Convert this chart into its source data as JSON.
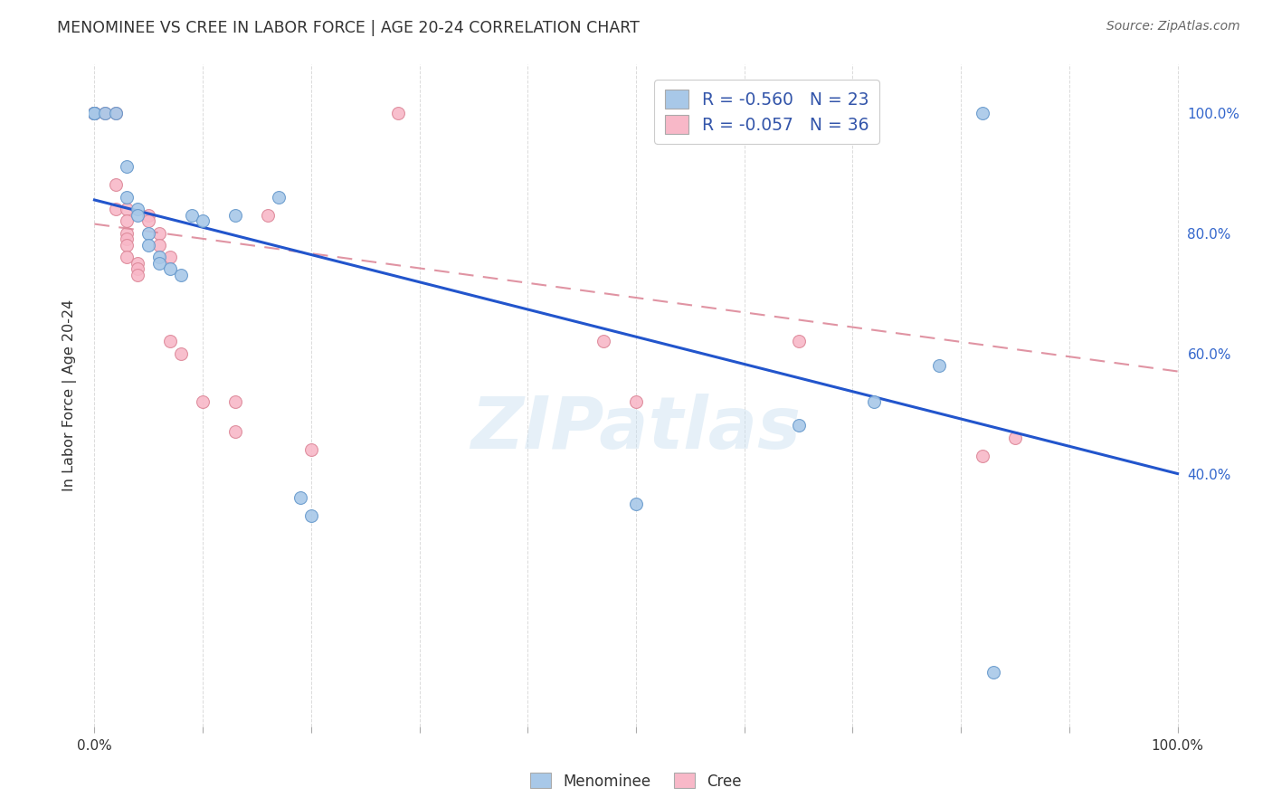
{
  "title": "MENOMINEE VS CREE IN LABOR FORCE | AGE 20-24 CORRELATION CHART",
  "source": "Source: ZipAtlas.com",
  "ylabel": "In Labor Force | Age 20-24",
  "xlim": [
    0.0,
    1.0
  ],
  "ylim": [
    -0.02,
    1.08
  ],
  "menominee_points": [
    [
      0.0,
      1.0
    ],
    [
      0.0,
      1.0
    ],
    [
      0.0,
      1.0
    ],
    [
      0.01,
      1.0
    ],
    [
      0.02,
      1.0
    ],
    [
      0.03,
      0.91
    ],
    [
      0.03,
      0.86
    ],
    [
      0.04,
      0.84
    ],
    [
      0.04,
      0.83
    ],
    [
      0.05,
      0.8
    ],
    [
      0.05,
      0.78
    ],
    [
      0.06,
      0.76
    ],
    [
      0.06,
      0.75
    ],
    [
      0.07,
      0.74
    ],
    [
      0.08,
      0.73
    ],
    [
      0.09,
      0.83
    ],
    [
      0.1,
      0.82
    ],
    [
      0.13,
      0.83
    ],
    [
      0.17,
      0.86
    ],
    [
      0.19,
      0.36
    ],
    [
      0.2,
      0.33
    ],
    [
      0.5,
      0.35
    ],
    [
      0.65,
      0.48
    ],
    [
      0.72,
      0.52
    ],
    [
      0.78,
      0.58
    ],
    [
      0.82,
      1.0
    ],
    [
      0.83,
      0.07
    ]
  ],
  "cree_points": [
    [
      0.0,
      1.0
    ],
    [
      0.0,
      1.0
    ],
    [
      0.0,
      1.0
    ],
    [
      0.0,
      1.0
    ],
    [
      0.0,
      1.0
    ],
    [
      0.01,
      1.0
    ],
    [
      0.02,
      1.0
    ],
    [
      0.02,
      0.88
    ],
    [
      0.02,
      0.84
    ],
    [
      0.03,
      0.84
    ],
    [
      0.03,
      0.82
    ],
    [
      0.03,
      0.8
    ],
    [
      0.03,
      0.79
    ],
    [
      0.03,
      0.78
    ],
    [
      0.03,
      0.76
    ],
    [
      0.04,
      0.75
    ],
    [
      0.04,
      0.74
    ],
    [
      0.04,
      0.73
    ],
    [
      0.05,
      0.83
    ],
    [
      0.05,
      0.82
    ],
    [
      0.06,
      0.8
    ],
    [
      0.06,
      0.78
    ],
    [
      0.07,
      0.76
    ],
    [
      0.07,
      0.62
    ],
    [
      0.08,
      0.6
    ],
    [
      0.1,
      0.52
    ],
    [
      0.13,
      0.52
    ],
    [
      0.16,
      0.83
    ],
    [
      0.28,
      1.0
    ],
    [
      0.47,
      0.62
    ],
    [
      0.5,
      0.52
    ],
    [
      0.65,
      0.62
    ],
    [
      0.82,
      0.43
    ],
    [
      0.85,
      0.46
    ],
    [
      0.13,
      0.47
    ],
    [
      0.2,
      0.44
    ]
  ],
  "menominee_color": "#a8c8e8",
  "menominee_edge": "#6699cc",
  "cree_color": "#f8b8c8",
  "cree_edge": "#dd8899",
  "menominee_line_color": "#2255cc",
  "cree_line_color": "#dd8899",
  "background_color": "#ffffff",
  "grid_color": "#cccccc",
  "title_color": "#333333",
  "watermark_text": "ZIPatlas",
  "marker_size": 100,
  "men_line_x0": 0.0,
  "men_line_y0": 0.855,
  "men_line_x1": 1.0,
  "men_line_y1": 0.4,
  "cree_line_x0": 0.0,
  "cree_line_y0": 0.815,
  "cree_line_x1": 1.0,
  "cree_line_y1": 0.57
}
